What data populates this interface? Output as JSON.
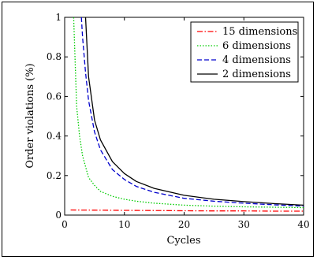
{
  "chart_data": {
    "type": "line",
    "xlabel": "Cycles",
    "ylabel": "Order violations (%)",
    "xlim": [
      0,
      40
    ],
    "ylim": [
      0,
      1
    ],
    "xticks": [
      "0",
      "10",
      "20",
      "30",
      "40"
    ],
    "yticks": [
      "0",
      "0.2",
      "0.4",
      "0.6",
      "0.8",
      "1"
    ],
    "grid": false,
    "legend_position": "top-right",
    "series": [
      {
        "name": "15 dimensions",
        "color": "#ff0000",
        "style": "dashdot",
        "x": [
          1,
          5,
          10,
          15,
          20,
          25,
          30,
          35,
          40
        ],
        "y": [
          0.026,
          0.025,
          0.024,
          0.023,
          0.022,
          0.021,
          0.021,
          0.02,
          0.02
        ]
      },
      {
        "name": "6 dimensions",
        "color": "#00cc00",
        "style": "dotted",
        "x": [
          1.5,
          2,
          2.5,
          3,
          4,
          5,
          6,
          8,
          10,
          12,
          15,
          20,
          25,
          30,
          35,
          40
        ],
        "y": [
          1.0,
          0.55,
          0.4,
          0.3,
          0.19,
          0.15,
          0.12,
          0.095,
          0.08,
          0.07,
          0.06,
          0.05,
          0.045,
          0.042,
          0.04,
          0.038
        ]
      },
      {
        "name": "4 dimensions",
        "color": "#0000cc",
        "style": "dashed",
        "x": [
          2.8,
          3,
          3.5,
          4,
          5,
          6,
          8,
          10,
          12,
          15,
          20,
          25,
          30,
          35,
          40
        ],
        "y": [
          1.0,
          0.9,
          0.72,
          0.58,
          0.42,
          0.33,
          0.23,
          0.18,
          0.145,
          0.115,
          0.085,
          0.07,
          0.06,
          0.052,
          0.046
        ]
      },
      {
        "name": "2 dimensions",
        "color": "#000000",
        "style": "solid",
        "x": [
          3.5,
          4,
          5,
          6,
          8,
          10,
          12,
          15,
          20,
          25,
          30,
          35,
          40
        ],
        "y": [
          1.0,
          0.7,
          0.48,
          0.38,
          0.27,
          0.21,
          0.17,
          0.135,
          0.1,
          0.08,
          0.068,
          0.058,
          0.05
        ]
      }
    ]
  }
}
